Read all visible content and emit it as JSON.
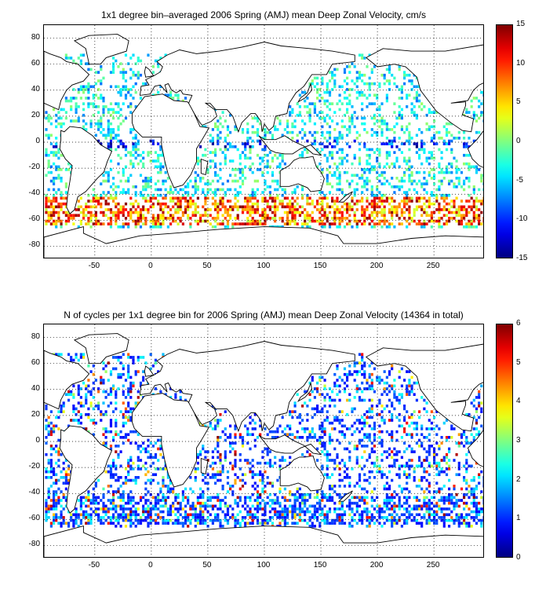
{
  "chart_data": [
    {
      "type": "heatmap",
      "title": "1x1 degree bin–averaged 2006 Spring (AMJ) mean Deep Zonal Velocity, cm/s",
      "xlabel": "",
      "ylabel": "",
      "xlim": [
        -95,
        295
      ],
      "ylim": [
        -90,
        90
      ],
      "xticks": [
        -50,
        0,
        50,
        100,
        150,
        200,
        250
      ],
      "yticks": [
        80,
        60,
        40,
        20,
        0,
        -20,
        -40,
        -60,
        -80
      ],
      "grid": true,
      "colorbar": {
        "min": -15,
        "max": 15,
        "ticks": [
          15,
          10,
          5,
          0,
          -5,
          -10,
          -15
        ],
        "colormap": "jet"
      },
      "units": "cm/s"
    },
    {
      "type": "heatmap",
      "title": "N of cycles per 1x1 degree bin for 2006 Spring (AMJ) mean Deep Zonal Velocity (14364 in total)",
      "xlabel": "",
      "ylabel": "",
      "xlim": [
        -95,
        295
      ],
      "ylim": [
        -90,
        90
      ],
      "xticks": [
        -50,
        0,
        50,
        100,
        150,
        200,
        250
      ],
      "yticks": [
        80,
        60,
        40,
        20,
        0,
        -20,
        -40,
        -60,
        -80
      ],
      "grid": true,
      "colorbar": {
        "min": 0,
        "max": 6,
        "ticks": [
          6,
          5,
          4,
          3,
          2,
          1,
          0
        ],
        "colormap": "jet"
      },
      "total_cycles": 14364
    }
  ]
}
